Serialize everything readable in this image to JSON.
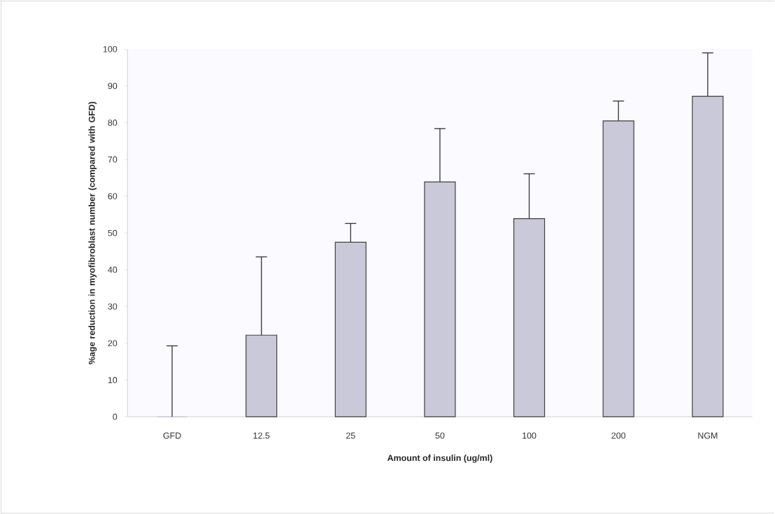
{
  "chart_data": {
    "type": "bar",
    "xlabel": "Amount of insulin (ug/ml)",
    "ylabel": "%age reduction in myofibroblast number (compared with GFD)",
    "categories": [
      "GFD",
      "12.5",
      "25",
      "50",
      "100",
      "200",
      "NGM"
    ],
    "values": [
      0,
      22.2,
      47.5,
      63.9,
      53.9,
      80.5,
      87.2
    ],
    "errors": [
      [
        0,
        19.3
      ],
      [
        22.2,
        43.5
      ],
      [
        47.5,
        52.6
      ],
      [
        63.9,
        78.4
      ],
      [
        53.9,
        66.1
      ],
      [
        80.5,
        85.9
      ],
      [
        87.2,
        99
      ]
    ],
    "color": "#c9c9d9",
    "ylim": [
      0,
      100
    ],
    "yticks": [
      0,
      10,
      20,
      30,
      40,
      50,
      60,
      70,
      80,
      90,
      100
    ]
  }
}
